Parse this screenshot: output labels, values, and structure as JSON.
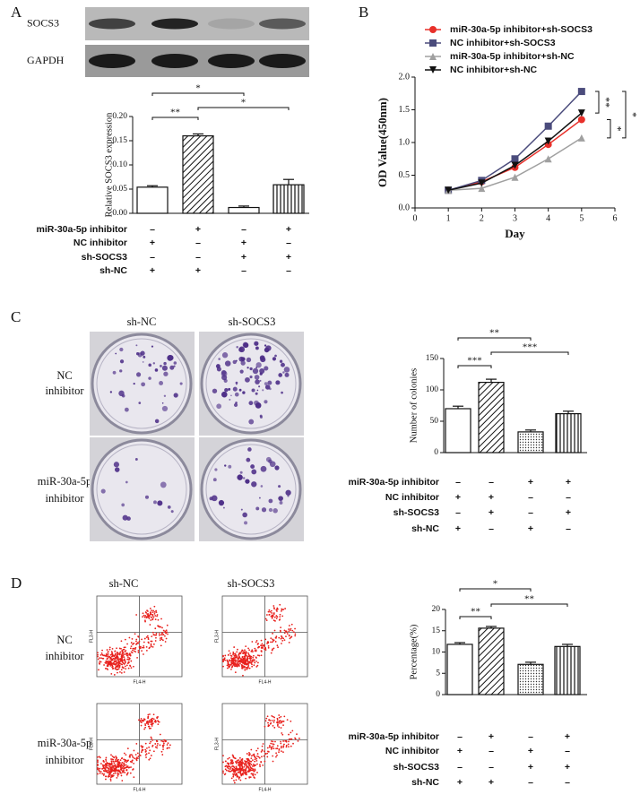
{
  "chart_data": [
    {
      "type": "bar",
      "panel_label": "A",
      "y_label": "Relative SOCS3 expression",
      "values": [
        0.054,
        0.16,
        0.012,
        0.059
      ],
      "errors": [
        0.003,
        0.004,
        0.003,
        0.011
      ],
      "patterns": [
        "none",
        "hatch",
        "none",
        "vlines"
      ],
      "ylim": [
        0,
        0.2
      ],
      "yticks": [
        {
          "value": 0,
          "label": "0.00"
        },
        {
          "value": 0.05,
          "label": "0.05"
        },
        {
          "value": 0.1,
          "label": "0.10"
        },
        {
          "value": 0.15,
          "label": "0.15"
        },
        {
          "value": 0.2,
          "label": "0.20"
        }
      ],
      "significance": [
        {
          "bars": [
            0,
            2
          ],
          "label": "*"
        },
        {
          "bars": [
            0,
            1
          ],
          "label": "**"
        },
        {
          "bars": [
            1,
            3
          ],
          "label": "*"
        }
      ],
      "conditions": [
        {
          "name": "miR-30a-5p inhibitor",
          "signs": [
            "–",
            "+",
            "–",
            "+"
          ]
        },
        {
          "name": "NC inhibitor",
          "signs": [
            "+",
            "–",
            "+",
            "–"
          ]
        },
        {
          "name": "sh-SOCS3",
          "signs": [
            "–",
            "–",
            "+",
            "+"
          ]
        },
        {
          "name": "sh-NC",
          "signs": [
            "+",
            "+",
            "–",
            "–"
          ]
        }
      ]
    },
    {
      "type": "line",
      "panel_label": "B",
      "x_label": "Day",
      "y_label": "OD Value(450nm)",
      "x": [
        1,
        2,
        3,
        4,
        5
      ],
      "series": [
        {
          "name": "miR-30a-5p inhibitor+sh-SOCS3",
          "color": "#e8302a",
          "marker": "circle",
          "values": [
            0.27,
            0.4,
            0.62,
            0.97,
            1.35
          ]
        },
        {
          "name": "NC inhibitor+sh-SOCS3",
          "color": "#4b4c7c",
          "marker": "square",
          "values": [
            0.27,
            0.42,
            0.75,
            1.25,
            1.78
          ]
        },
        {
          "name": "miR-30a-5p inhibitor+sh-NC",
          "color": "#a0a0a0",
          "marker": "triangle",
          "values": [
            0.27,
            0.3,
            0.47,
            0.75,
            1.07
          ]
        },
        {
          "name": "NC inhibitor+sh-NC",
          "color": "#111111",
          "marker": "triangle-down",
          "values": [
            0.27,
            0.38,
            0.65,
            1.02,
            1.45
          ]
        }
      ],
      "xlim": [
        0,
        6
      ],
      "xticks": [
        0,
        1,
        2,
        3,
        4,
        5,
        6
      ],
      "ylim": [
        0,
        2
      ],
      "yticks": [
        {
          "value": 0,
          "label": "0.0"
        },
        {
          "value": 0.5,
          "label": "0.5"
        },
        {
          "value": 1,
          "label": "1.0"
        },
        {
          "value": 1.5,
          "label": "1.5"
        },
        {
          "value": 2,
          "label": "2.0"
        }
      ],
      "significance": [
        {
          "series": [
            1,
            3
          ],
          "label": "**"
        },
        {
          "series": [
            0,
            2
          ],
          "label": "*"
        },
        {
          "series": [
            1,
            2
          ],
          "label": "*"
        }
      ]
    },
    {
      "type": "bar",
      "panel_label": "C",
      "y_label": "Number of colonies",
      "values": [
        70,
        112,
        33,
        62
      ],
      "errors": [
        4,
        5,
        3,
        4
      ],
      "patterns": [
        "none",
        "hatch",
        "dots",
        "vlines"
      ],
      "ylim": [
        0,
        150
      ],
      "yticks": [
        0,
        50,
        100,
        150
      ],
      "significance": [
        {
          "bars": [
            0,
            2
          ],
          "label": "**"
        },
        {
          "bars": [
            0,
            1
          ],
          "label": "***"
        },
        {
          "bars": [
            1,
            3
          ],
          "label": "***"
        }
      ],
      "conditions": [
        {
          "name": "miR-30a-5p inhibitor",
          "signs": [
            "–",
            "–",
            "+",
            "+"
          ]
        },
        {
          "name": "NC inhibitor",
          "signs": [
            "+",
            "+",
            "–",
            "–"
          ]
        },
        {
          "name": "sh-SOCS3",
          "signs": [
            "–",
            "+",
            "–",
            "+"
          ]
        },
        {
          "name": "sh-NC",
          "signs": [
            "+",
            "–",
            "+",
            "–"
          ]
        }
      ]
    },
    {
      "type": "bar",
      "panel_label": "D",
      "y_label": "Percentage(%)",
      "values": [
        11.8,
        15.6,
        7.1,
        11.3
      ],
      "errors": [
        0.4,
        0.4,
        0.5,
        0.5
      ],
      "patterns": [
        "none",
        "hatch",
        "dots",
        "vlines"
      ],
      "ylim": [
        0,
        20
      ],
      "yticks": [
        0,
        5,
        10,
        15,
        20
      ],
      "significance": [
        {
          "bars": [
            0,
            2
          ],
          "label": "*"
        },
        {
          "bars": [
            0,
            1
          ],
          "label": "**"
        },
        {
          "bars": [
            1,
            3
          ],
          "label": "**"
        }
      ],
      "conditions": [
        {
          "name": "miR-30a-5p inhibitor",
          "signs": [
            "–",
            "+",
            "–",
            "+"
          ]
        },
        {
          "name": "NC inhibitor",
          "signs": [
            "+",
            "–",
            "+",
            "–"
          ]
        },
        {
          "name": "sh-SOCS3",
          "signs": [
            "–",
            "–",
            "+",
            "+"
          ]
        },
        {
          "name": "sh-NC",
          "signs": [
            "+",
            "+",
            "–",
            "–"
          ]
        }
      ]
    }
  ],
  "blot": {
    "rows": [
      "SOCS3",
      "GAPDH"
    ]
  },
  "colony_images": {
    "columns": [
      "sh-NC",
      "sh-SOCS3"
    ],
    "rows": [
      [
        "NC",
        "inhibitor"
      ],
      [
        "miR-30a-5p",
        "inhibitor"
      ]
    ]
  },
  "flow_images": {
    "columns": [
      "sh-NC",
      "sh-SOCS3"
    ],
    "rows": [
      [
        "NC",
        "inhibitor"
      ],
      [
        "miR-30a-5p",
        "inhibitor"
      ]
    ],
    "x_axis_label": "FL4-H",
    "y_axis_label": "FL3-H"
  }
}
